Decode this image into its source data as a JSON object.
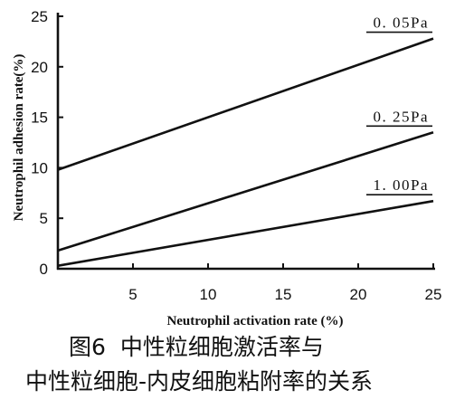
{
  "chart_data": {
    "type": "line",
    "xlabel": "Neutrophil activation rate (%)",
    "ylabel": "Neutrophil adhesion rate(%)",
    "xlim": [
      0,
      25
    ],
    "ylim": [
      0,
      25
    ],
    "x_ticks": [
      5,
      10,
      15,
      20,
      25
    ],
    "y_ticks": [
      0,
      5,
      10,
      15,
      20,
      25
    ],
    "grid": false,
    "legend": "none",
    "series": [
      {
        "name": "0.05Pa",
        "label": "0. 05Pa",
        "x": [
          0,
          25
        ],
        "y": [
          9.8,
          22.8
        ]
      },
      {
        "name": "0.25Pa",
        "label": "0. 25Pa",
        "x": [
          0,
          25
        ],
        "y": [
          1.8,
          13.5
        ]
      },
      {
        "name": "1.00Pa",
        "label": "1. 00Pa",
        "x": [
          0,
          25
        ],
        "y": [
          0.3,
          6.7
        ]
      }
    ]
  },
  "caption": {
    "line1": "图6 中性粒细胞激活率与",
    "line2": "中性粒细胞-内皮细胞粘附率的关系"
  }
}
